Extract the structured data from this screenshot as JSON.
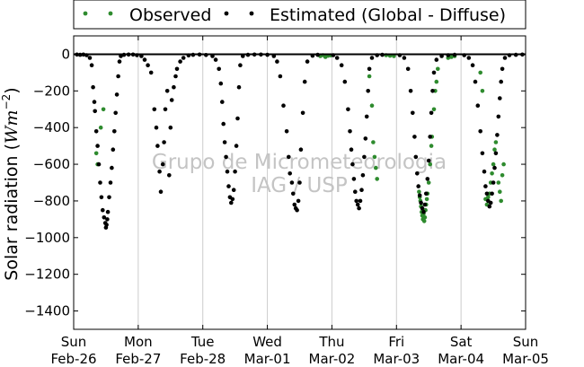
{
  "chart_data": {
    "type": "scatter",
    "ylabel_text": "Solar radiation (",
    "ylabel_unit_base": "Wm",
    "ylabel_unit_exp": "−2",
    "ylabel_close": ")",
    "ylim": [
      -1500,
      100
    ],
    "yticks": [
      0,
      -200,
      -400,
      -600,
      -800,
      -1000,
      -1200,
      -1400
    ],
    "ytick_labels": [
      "0",
      "−200",
      "−400",
      "−600",
      "−800",
      "−1000",
      "−1200",
      "−1400"
    ],
    "xlim": [
      0,
      7
    ],
    "xticks": [
      {
        "x": 0,
        "day": "Sun",
        "date": "Feb-26"
      },
      {
        "x": 1,
        "day": "Mon",
        "date": "Feb-27"
      },
      {
        "x": 2,
        "day": "Tue",
        "date": "Feb-28"
      },
      {
        "x": 3,
        "day": "Wed",
        "date": "Mar-01"
      },
      {
        "x": 4,
        "day": "Thu",
        "date": "Mar-02"
      },
      {
        "x": 5,
        "day": "Fri",
        "date": "Mar-03"
      },
      {
        "x": 6,
        "day": "Sat",
        "date": "Mar-04"
      },
      {
        "x": 7,
        "day": "Sun",
        "date": "Mar-05"
      }
    ],
    "grid": "vertical",
    "legend_placement": "top-center",
    "watermark": [
      "Grupo de Micrometeorologia",
      "IAG / USP"
    ],
    "series": [
      {
        "name": "Observed",
        "color": "#2e8b2e",
        "points": [
          [
            0.35,
            -540
          ],
          [
            0.37,
            -600
          ],
          [
            0.42,
            -400
          ],
          [
            0.46,
            -300
          ],
          [
            3.82,
            -10
          ],
          [
            3.86,
            -5
          ],
          [
            3.9,
            -15
          ],
          [
            3.94,
            -8
          ],
          [
            3.98,
            -6
          ],
          [
            4.58,
            -120
          ],
          [
            4.62,
            -280
          ],
          [
            4.64,
            -480
          ],
          [
            4.66,
            -560
          ],
          [
            4.68,
            -620
          ],
          [
            4.7,
            -680
          ],
          [
            4.84,
            -5
          ],
          [
            4.9,
            -8
          ],
          [
            4.96,
            -10
          ],
          [
            5.35,
            -750
          ],
          [
            5.36,
            -780
          ],
          [
            5.37,
            -800
          ],
          [
            5.38,
            -830
          ],
          [
            5.39,
            -860
          ],
          [
            5.4,
            -880
          ],
          [
            5.41,
            -900
          ],
          [
            5.42,
            -870
          ],
          [
            5.43,
            -910
          ],
          [
            5.44,
            -890
          ],
          [
            5.45,
            -850
          ],
          [
            5.46,
            -820
          ],
          [
            5.47,
            -790
          ],
          [
            5.48,
            -760
          ],
          [
            5.5,
            -700
          ],
          [
            5.52,
            -600
          ],
          [
            5.54,
            -500
          ],
          [
            5.55,
            -450
          ],
          [
            5.58,
            -300
          ],
          [
            5.6,
            -200
          ],
          [
            5.62,
            -150
          ],
          [
            5.64,
            -80
          ],
          [
            5.8,
            -20
          ],
          [
            5.85,
            -15
          ],
          [
            5.9,
            -10
          ],
          [
            6.3,
            -100
          ],
          [
            6.33,
            -200
          ],
          [
            6.38,
            -790
          ],
          [
            6.4,
            -820
          ],
          [
            6.42,
            -780
          ],
          [
            6.44,
            -760
          ],
          [
            6.46,
            -700
          ],
          [
            6.48,
            -650
          ],
          [
            6.5,
            -600
          ],
          [
            6.52,
            -520
          ],
          [
            6.54,
            -480
          ],
          [
            6.58,
            -700
          ],
          [
            6.6,
            -750
          ],
          [
            6.62,
            -800
          ],
          [
            6.64,
            -660
          ],
          [
            6.66,
            -600
          ]
        ]
      },
      {
        "name": "Estimated (Global - Diffuse)",
        "color": "#000000",
        "points": [
          [
            0.05,
            -2
          ],
          [
            0.1,
            -3
          ],
          [
            0.15,
            -2
          ],
          [
            0.2,
            -5
          ],
          [
            0.25,
            -20
          ],
          [
            0.28,
            -60
          ],
          [
            0.3,
            -180
          ],
          [
            0.32,
            -260
          ],
          [
            0.33,
            -310
          ],
          [
            0.35,
            -420
          ],
          [
            0.37,
            -500
          ],
          [
            0.39,
            -600
          ],
          [
            0.41,
            -700
          ],
          [
            0.43,
            -780
          ],
          [
            0.45,
            -850
          ],
          [
            0.47,
            -890
          ],
          [
            0.49,
            -920
          ],
          [
            0.5,
            -945
          ],
          [
            0.51,
            -930
          ],
          [
            0.52,
            -900
          ],
          [
            0.53,
            -860
          ],
          [
            0.55,
            -780
          ],
          [
            0.57,
            -700
          ],
          [
            0.59,
            -620
          ],
          [
            0.61,
            -520
          ],
          [
            0.63,
            -420
          ],
          [
            0.65,
            -320
          ],
          [
            0.67,
            -220
          ],
          [
            0.69,
            -120
          ],
          [
            0.71,
            -40
          ],
          [
            0.73,
            -10
          ],
          [
            0.78,
            -3
          ],
          [
            0.85,
            -2
          ],
          [
            0.92,
            -2
          ],
          [
            0.98,
            -5
          ],
          [
            1.05,
            -10
          ],
          [
            1.1,
            -30
          ],
          [
            1.15,
            -60
          ],
          [
            1.2,
            -100
          ],
          [
            1.25,
            -300
          ],
          [
            1.28,
            -400
          ],
          [
            1.3,
            -500
          ],
          [
            1.33,
            -640
          ],
          [
            1.35,
            -750
          ],
          [
            1.38,
            -600
          ],
          [
            1.4,
            -480
          ],
          [
            1.42,
            -300
          ],
          [
            1.45,
            -200
          ],
          [
            1.48,
            -660
          ],
          [
            1.5,
            -400
          ],
          [
            1.52,
            -250
          ],
          [
            1.55,
            -180
          ],
          [
            1.58,
            -120
          ],
          [
            1.6,
            -80
          ],
          [
            1.65,
            -40
          ],
          [
            1.7,
            -20
          ],
          [
            1.78,
            -6
          ],
          [
            1.85,
            -3
          ],
          [
            1.95,
            -2
          ],
          [
            2.05,
            -4
          ],
          [
            2.15,
            -10
          ],
          [
            2.2,
            -30
          ],
          [
            2.25,
            -80
          ],
          [
            2.28,
            -160
          ],
          [
            2.3,
            -260
          ],
          [
            2.32,
            -380
          ],
          [
            2.34,
            -480
          ],
          [
            2.36,
            -560
          ],
          [
            2.38,
            -640
          ],
          [
            2.4,
            -720
          ],
          [
            2.42,
            -780
          ],
          [
            2.44,
            -810
          ],
          [
            2.46,
            -790
          ],
          [
            2.48,
            -740
          ],
          [
            2.5,
            -640
          ],
          [
            2.52,
            -500
          ],
          [
            2.54,
            -350
          ],
          [
            2.56,
            -180
          ],
          [
            2.58,
            -60
          ],
          [
            2.62,
            -10
          ],
          [
            2.7,
            -3
          ],
          [
            2.8,
            -2
          ],
          [
            2.9,
            -2
          ],
          [
            3.0,
            -3
          ],
          [
            3.1,
            -10
          ],
          [
            3.15,
            -40
          ],
          [
            3.2,
            -120
          ],
          [
            3.25,
            -280
          ],
          [
            3.3,
            -420
          ],
          [
            3.33,
            -560
          ],
          [
            3.35,
            -650
          ],
          [
            3.38,
            -700
          ],
          [
            3.4,
            -760
          ],
          [
            3.42,
            -820
          ],
          [
            3.44,
            -840
          ],
          [
            3.46,
            -850
          ],
          [
            3.48,
            -800
          ],
          [
            3.5,
            -700
          ],
          [
            3.52,
            -520
          ],
          [
            3.55,
            -320
          ],
          [
            3.58,
            -150
          ],
          [
            3.62,
            -40
          ],
          [
            3.7,
            -8
          ],
          [
            3.78,
            -3
          ],
          [
            4.02,
            -5
          ],
          [
            4.08,
            -20
          ],
          [
            4.15,
            -60
          ],
          [
            4.2,
            -150
          ],
          [
            4.25,
            -300
          ],
          [
            4.28,
            -420
          ],
          [
            4.3,
            -520
          ],
          [
            4.32,
            -600
          ],
          [
            4.34,
            -680
          ],
          [
            4.36,
            -750
          ],
          [
            4.38,
            -800
          ],
          [
            4.4,
            -820
          ],
          [
            4.42,
            -840
          ],
          [
            4.44,
            -800
          ],
          [
            4.46,
            -740
          ],
          [
            4.48,
            -660
          ],
          [
            4.5,
            -560
          ],
          [
            4.52,
            -460
          ],
          [
            4.54,
            -340
          ],
          [
            4.56,
            -200
          ],
          [
            4.58,
            -80
          ],
          [
            4.62,
            -20
          ],
          [
            4.7,
            -5
          ],
          [
            4.78,
            -3
          ],
          [
            5.05,
            -5
          ],
          [
            5.12,
            -20
          ],
          [
            5.18,
            -80
          ],
          [
            5.22,
            -200
          ],
          [
            5.25,
            -320
          ],
          [
            5.28,
            -450
          ],
          [
            5.3,
            -560
          ],
          [
            5.32,
            -650
          ],
          [
            5.34,
            -720
          ],
          [
            5.36,
            -770
          ],
          [
            5.38,
            -810
          ],
          [
            5.4,
            -840
          ],
          [
            5.42,
            -860
          ],
          [
            5.44,
            -820
          ],
          [
            5.46,
            -760
          ],
          [
            5.48,
            -680
          ],
          [
            5.5,
            -580
          ],
          [
            5.52,
            -450
          ],
          [
            5.54,
            -320
          ],
          [
            5.56,
            -200
          ],
          [
            5.58,
            -100
          ],
          [
            5.62,
            -30
          ],
          [
            5.7,
            -10
          ],
          [
            5.8,
            -5
          ],
          [
            5.9,
            -3
          ],
          [
            6.05,
            -5
          ],
          [
            6.12,
            -20
          ],
          [
            6.18,
            -60
          ],
          [
            6.22,
            -150
          ],
          [
            6.26,
            -280
          ],
          [
            6.3,
            -420
          ],
          [
            6.33,
            -540
          ],
          [
            6.36,
            -640
          ],
          [
            6.38,
            -720
          ],
          [
            6.4,
            -760
          ],
          [
            6.42,
            -800
          ],
          [
            6.44,
            -830
          ],
          [
            6.46,
            -810
          ],
          [
            6.48,
            -760
          ],
          [
            6.5,
            -700
          ],
          [
            6.52,
            -620
          ],
          [
            6.54,
            -540
          ],
          [
            6.56,
            -440
          ],
          [
            6.58,
            -340
          ],
          [
            6.6,
            -240
          ],
          [
            6.62,
            -150
          ],
          [
            6.64,
            -80
          ],
          [
            6.68,
            -20
          ],
          [
            6.75,
            -5
          ],
          [
            6.85,
            -3
          ],
          [
            6.95,
            -2
          ]
        ]
      }
    ]
  }
}
